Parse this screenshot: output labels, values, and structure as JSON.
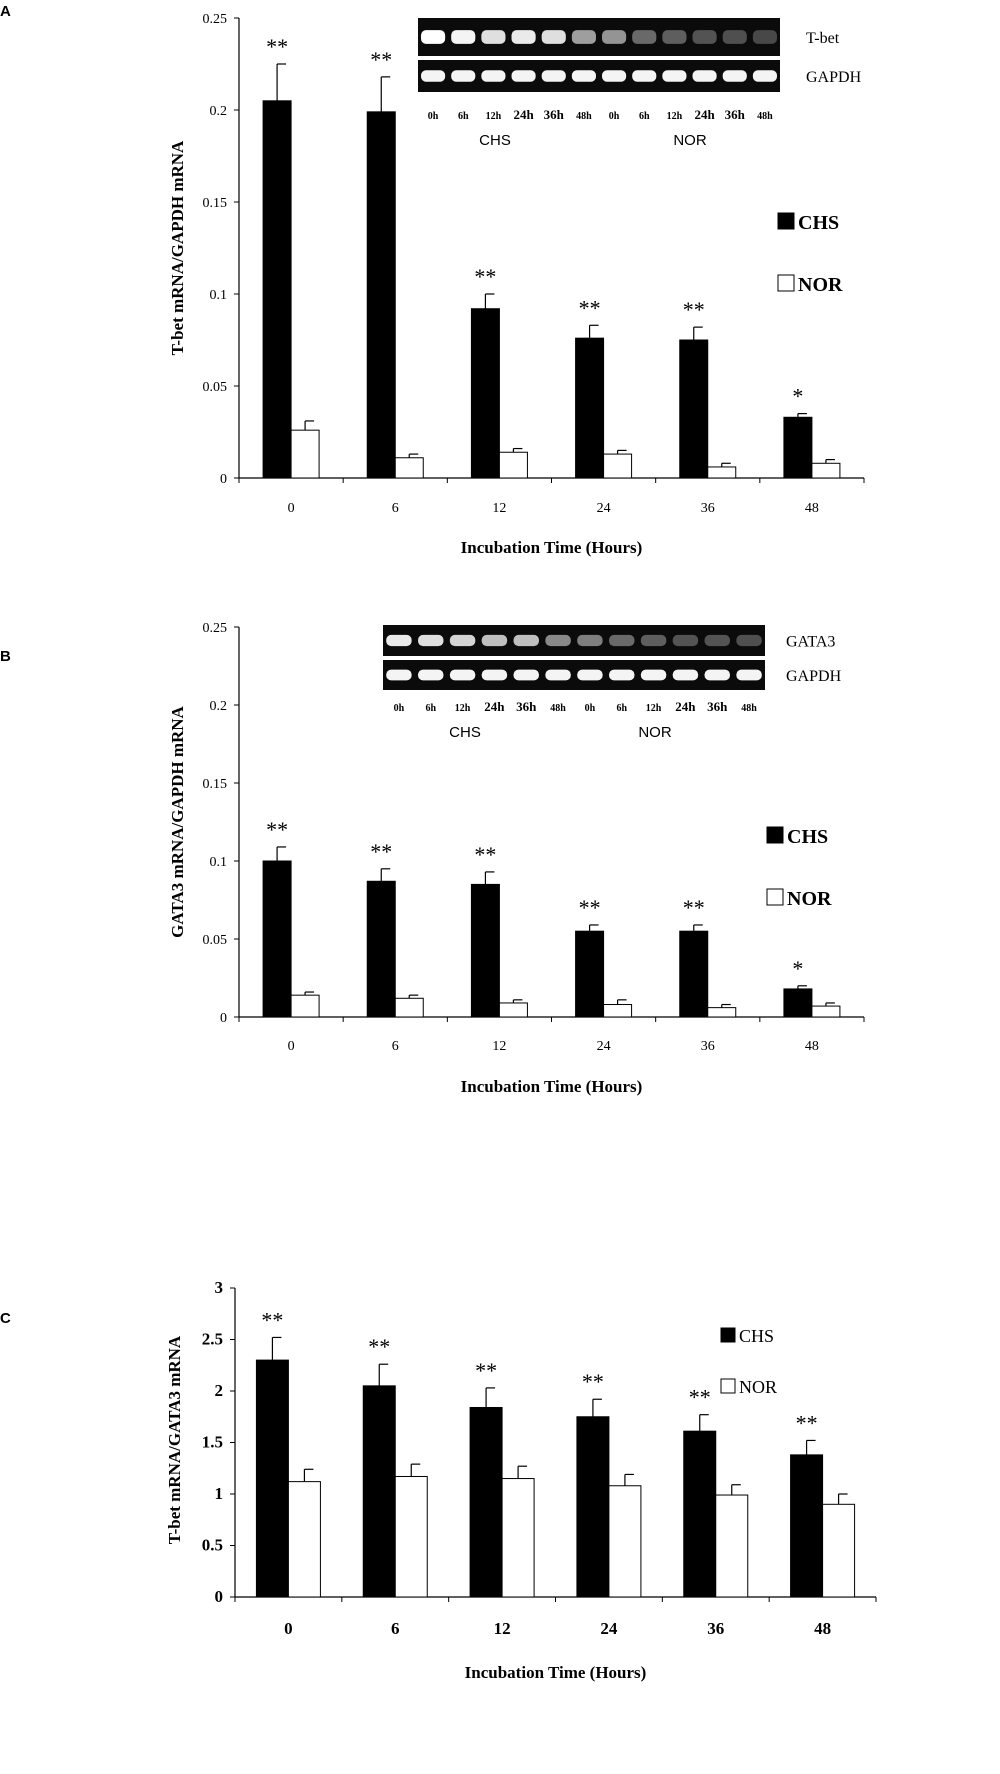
{
  "chart_data": [
    {
      "panel": "A",
      "type": "bar",
      "xlabel": "Incubation Time (Hours)",
      "ylabel": "T-bet mRNA/GAPDH mRNA",
      "categories": [
        "0",
        "6",
        "12",
        "24",
        "36",
        "48"
      ],
      "ylim": [
        0,
        0.25
      ],
      "yticks": [
        "0",
        "0.05",
        "0.1",
        "0.15",
        "0.2",
        "0.25"
      ],
      "grid": false,
      "legend_position": "right",
      "series": [
        {
          "name": "CHS",
          "values": [
            0.205,
            0.199,
            0.092,
            0.076,
            0.075,
            0.033
          ],
          "errors": [
            0.02,
            0.019,
            0.008,
            0.007,
            0.007,
            0.002
          ],
          "color": "#000000"
        },
        {
          "name": "NOR",
          "values": [
            0.026,
            0.011,
            0.014,
            0.013,
            0.006,
            0.008
          ],
          "errors": [
            0.005,
            0.002,
            0.002,
            0.002,
            0.002,
            0.002
          ],
          "color": "#ffffff"
        }
      ],
      "significance": [
        "**",
        "**",
        "**",
        "**",
        "**",
        "*"
      ],
      "gel": {
        "top_label": "T-bet",
        "bottom_label": "GAPDH",
        "lanes": [
          "0h",
          "6h",
          "12h",
          "24h",
          "36h",
          "48h",
          "0h",
          "6h",
          "12h",
          "24h",
          "36h",
          "48h"
        ],
        "groups": [
          "CHS",
          "NOR"
        ],
        "top_intensity": [
          1.0,
          0.95,
          0.85,
          0.9,
          0.85,
          0.55,
          0.5,
          0.3,
          0.25,
          0.2,
          0.18,
          0.15
        ],
        "bottom_intensity": [
          0.95,
          0.95,
          0.95,
          0.95,
          0.95,
          0.95,
          0.95,
          0.95,
          0.95,
          0.95,
          0.95,
          0.95
        ]
      }
    },
    {
      "panel": "B",
      "type": "bar",
      "xlabel": "Incubation Time (Hours)",
      "ylabel": "GATA3  mRNA/GAPDH  mRNA",
      "categories": [
        "0",
        "6",
        "12",
        "24",
        "36",
        "48"
      ],
      "ylim": [
        0,
        0.25
      ],
      "yticks": [
        "0",
        "0.05",
        "0.1",
        "0.15",
        "0.2",
        "0.25"
      ],
      "grid": false,
      "legend_position": "right",
      "series": [
        {
          "name": "CHS",
          "values": [
            0.1,
            0.087,
            0.085,
            0.055,
            0.055,
            0.018
          ],
          "errors": [
            0.009,
            0.008,
            0.008,
            0.004,
            0.004,
            0.002
          ],
          "color": "#000000"
        },
        {
          "name": "NOR",
          "values": [
            0.014,
            0.012,
            0.009,
            0.008,
            0.006,
            0.007
          ],
          "errors": [
            0.002,
            0.002,
            0.002,
            0.003,
            0.002,
            0.002
          ],
          "color": "#ffffff"
        }
      ],
      "significance": [
        "**",
        "**",
        "**",
        "**",
        "**",
        "*"
      ],
      "gel": {
        "top_label": "GATA3",
        "bottom_label": "GAPDH",
        "lanes": [
          "0h",
          "6h",
          "12h",
          "24h",
          "36h",
          "48h",
          "0h",
          "6h",
          "12h",
          "24h",
          "36h",
          "48h"
        ],
        "groups": [
          "CHS",
          "NOR"
        ],
        "top_intensity": [
          0.9,
          0.85,
          0.8,
          0.7,
          0.7,
          0.45,
          0.4,
          0.3,
          0.25,
          0.2,
          0.2,
          0.18
        ],
        "bottom_intensity": [
          0.95,
          0.95,
          0.95,
          0.95,
          0.95,
          0.95,
          0.95,
          0.95,
          0.95,
          0.95,
          0.95,
          0.95
        ]
      }
    },
    {
      "panel": "C",
      "type": "bar",
      "xlabel": "Incubation Time (Hours)",
      "ylabel": "T-bet mRNA/GATA3  mRNA",
      "categories": [
        "0",
        "6",
        "12",
        "24",
        "36",
        "48"
      ],
      "ylim": [
        0,
        3
      ],
      "yticks": [
        "0",
        "0.5",
        "1",
        "1.5",
        "2",
        "2.5",
        "3"
      ],
      "grid": false,
      "legend_position": "top-right",
      "series": [
        {
          "name": "CHS",
          "values": [
            2.3,
            2.05,
            1.84,
            1.75,
            1.61,
            1.38
          ],
          "errors": [
            0.22,
            0.21,
            0.19,
            0.17,
            0.16,
            0.14
          ],
          "color": "#000000"
        },
        {
          "name": "NOR",
          "values": [
            1.12,
            1.17,
            1.15,
            1.08,
            0.99,
            0.9
          ],
          "errors": [
            0.12,
            0.12,
            0.12,
            0.11,
            0.1,
            0.1
          ],
          "color": "#ffffff"
        }
      ],
      "significance": [
        "**",
        "**",
        "**",
        "**",
        "**",
        "**"
      ]
    }
  ]
}
